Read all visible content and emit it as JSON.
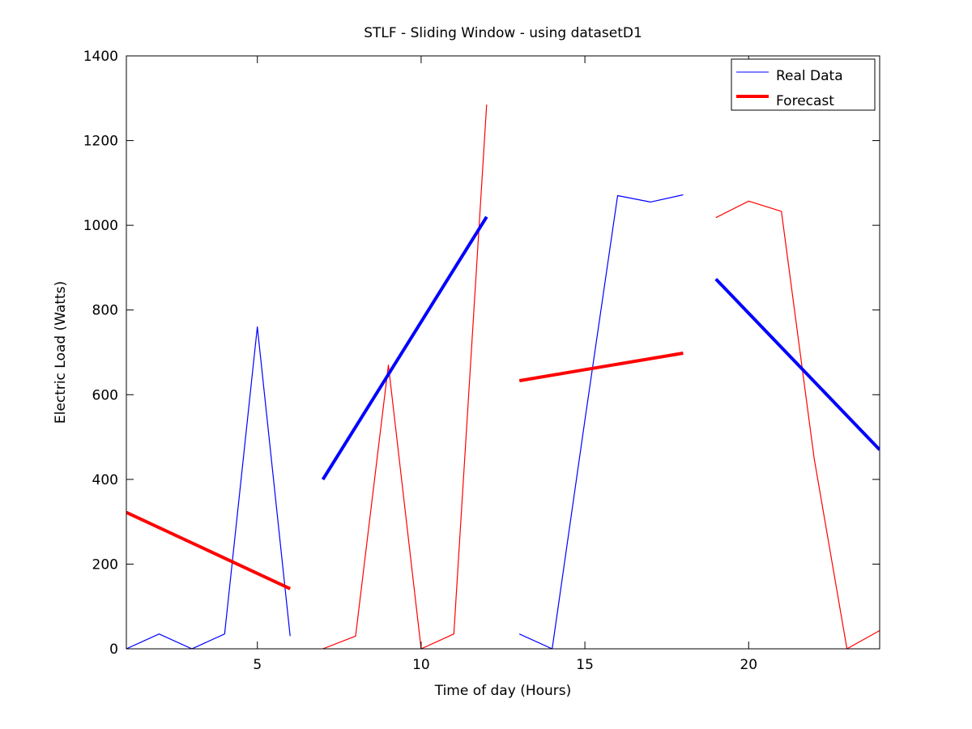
{
  "chart_data": {
    "type": "line",
    "title": "STLF - Sliding Window - using datasetD1",
    "xlabel": "Time of day (Hours)",
    "ylabel": "Electric Load (Watts)",
    "xlim": [
      1,
      24
    ],
    "ylim": [
      0,
      1400
    ],
    "xticks": [
      5,
      10,
      15,
      20
    ],
    "yticks": [
      0,
      200,
      400,
      600,
      800,
      1000,
      1200,
      1400
    ],
    "grid": false,
    "legend_position": "top-right",
    "legend": [
      {
        "label": "Real Data",
        "style": "thin"
      },
      {
        "label": "Forecast",
        "style": "thick"
      }
    ],
    "colors": {
      "blue": "#0000ff",
      "red": "#ff0000"
    },
    "segments": [
      {
        "x": [
          1,
          2,
          3,
          4,
          5,
          6
        ],
        "y": [
          0,
          35,
          0,
          35,
          760,
          30
        ],
        "color": "blue",
        "style": "thin"
      },
      {
        "x": [
          1,
          6
        ],
        "y": [
          322,
          142
        ],
        "color": "red",
        "style": "thick"
      },
      {
        "x": [
          7,
          8,
          9,
          10,
          11,
          12
        ],
        "y": [
          0,
          30,
          670,
          0,
          35,
          1285
        ],
        "color": "red",
        "style": "thin"
      },
      {
        "x": [
          7,
          12
        ],
        "y": [
          400,
          1020
        ],
        "color": "blue",
        "style": "thick"
      },
      {
        "x": [
          13,
          14,
          15,
          16,
          17,
          18
        ],
        "y": [
          35,
          0,
          540,
          1070,
          1055,
          1072
        ],
        "color": "blue",
        "style": "thin"
      },
      {
        "x": [
          13,
          18
        ],
        "y": [
          633,
          698
        ],
        "color": "red",
        "style": "thick"
      },
      {
        "x": [
          19,
          20,
          21,
          22,
          23,
          24
        ],
        "y": [
          1018,
          1057,
          1033,
          450,
          0,
          43
        ],
        "color": "red",
        "style": "thin"
      },
      {
        "x": [
          19,
          24
        ],
        "y": [
          873,
          470
        ],
        "color": "blue",
        "style": "thick"
      }
    ]
  }
}
